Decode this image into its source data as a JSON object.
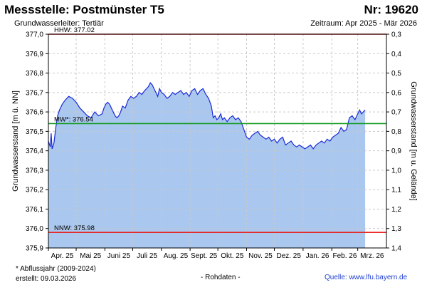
{
  "header": {
    "title": "Messstelle: Postmünster T5",
    "number": "Nr: 19620",
    "aquifer": "Grundwasserleiter: Tertiär",
    "period": "Zeitraum: Apr 2025 - Mär 2026"
  },
  "footer": {
    "note": "* Abflussjahr (2009-2024)",
    "created": "erstellt:  09.03.2026",
    "raw": "- Rohdaten -",
    "source": "Quelle:  www.lfu.bayern.de"
  },
  "chart_data": {
    "type": "area",
    "ylabel": "Grundwasserstand [m ü. NN]",
    "y2label": "Grundwasserstand [m u. Gelände]",
    "ylim": [
      375.9,
      377.0
    ],
    "yticks": [
      "375,9",
      "376,0",
      "376,1",
      "376,2",
      "376,3",
      "376,4",
      "376,5",
      "376,6",
      "376,7",
      "376,8",
      "376,9",
      "377,0"
    ],
    "y2lim": [
      1.4,
      0.3
    ],
    "y2ticks": [
      "1,4",
      "1,3",
      "1,2",
      "1,1",
      "1,0",
      "0,9",
      "0,8",
      "0,7",
      "0,6",
      "0,5",
      "0,4",
      "0,3"
    ],
    "xlim": [
      0,
      365
    ],
    "months": [
      "Apr. 25",
      "Mai 25",
      "Juni 25",
      "Juli 25",
      "Aug. 25",
      "Sept. 25",
      "Okt. 25",
      "Nov. 25",
      "Dez. 25",
      "Jan. 26",
      "Feb. 26",
      "Mrz. 26"
    ],
    "month_starts": [
      0,
      30,
      61,
      91,
      122,
      153,
      183,
      214,
      244,
      275,
      306,
      334
    ],
    "grid": true,
    "reference_lines": [
      {
        "label": "HHW: 377.02",
        "value": 377.02,
        "color": "#e8231f"
      },
      {
        "label": "MW*: 376.54",
        "value": 376.54,
        "color": "#119a1e"
      },
      {
        "label": "NNW: 375.98",
        "value": 375.98,
        "color": "#e8231f"
      }
    ],
    "series": [
      {
        "color": "#1a2bd6",
        "fill": "#a9c7ef",
        "x": [
          0,
          2,
          3,
          4,
          6,
          8,
          10,
          12,
          15,
          18,
          22,
          26,
          30,
          34,
          38,
          42,
          46,
          50,
          54,
          58,
          60,
          62,
          64,
          66,
          68,
          70,
          72,
          74,
          76,
          78,
          80,
          83,
          86,
          89,
          92,
          95,
          98,
          101,
          104,
          106,
          108,
          110,
          112,
          114,
          116,
          118,
          120,
          122,
          125,
          128,
          131,
          134,
          137,
          140,
          143,
          146,
          149,
          152,
          155,
          158,
          161,
          164,
          167,
          170,
          173,
          176,
          178,
          180,
          182,
          184,
          186,
          188,
          190,
          193,
          196,
          199,
          202,
          205,
          208,
          211,
          214,
          217,
          220,
          223,
          226,
          229,
          232,
          235,
          238,
          241,
          244,
          247,
          250,
          253,
          256,
          259,
          262,
          265,
          268,
          271,
          274,
          277,
          280,
          283,
          286,
          289,
          292,
          295,
          298,
          301,
          304,
          307,
          310,
          313,
          316,
          319,
          322,
          325,
          328,
          331,
          334,
          336,
          338,
          340,
          342
        ],
        "y": [
          376.45,
          376.42,
          376.49,
          376.41,
          376.44,
          376.52,
          376.58,
          376.61,
          376.64,
          376.66,
          376.68,
          376.67,
          376.65,
          376.62,
          376.6,
          376.58,
          376.57,
          376.6,
          376.58,
          376.59,
          376.62,
          376.64,
          376.65,
          376.64,
          376.62,
          376.6,
          376.58,
          376.57,
          376.58,
          376.6,
          376.63,
          376.62,
          376.66,
          376.68,
          376.67,
          376.68,
          376.7,
          376.69,
          376.71,
          376.72,
          376.73,
          376.75,
          376.74,
          376.72,
          376.7,
          376.68,
          376.72,
          376.7,
          376.69,
          376.67,
          376.68,
          376.7,
          376.69,
          376.7,
          376.71,
          376.69,
          376.7,
          376.68,
          376.71,
          376.72,
          376.69,
          376.71,
          376.72,
          376.69,
          376.67,
          376.63,
          376.57,
          376.58,
          376.56,
          376.57,
          376.59,
          376.56,
          376.57,
          376.55,
          376.57,
          376.58,
          376.56,
          376.57,
          376.55,
          376.51,
          376.47,
          376.46,
          376.48,
          376.49,
          376.5,
          376.48,
          376.47,
          376.46,
          376.47,
          376.45,
          376.46,
          376.44,
          376.46,
          376.47,
          376.43,
          376.44,
          376.45,
          376.43,
          376.42,
          376.43,
          376.42,
          376.41,
          376.42,
          376.43,
          376.41,
          376.43,
          376.44,
          376.45,
          376.44,
          376.46,
          376.45,
          376.47,
          376.48,
          376.49,
          376.52,
          376.5,
          376.51,
          376.57,
          376.58,
          376.56,
          376.59,
          376.61,
          376.59,
          376.6,
          376.61
        ]
      }
    ]
  }
}
